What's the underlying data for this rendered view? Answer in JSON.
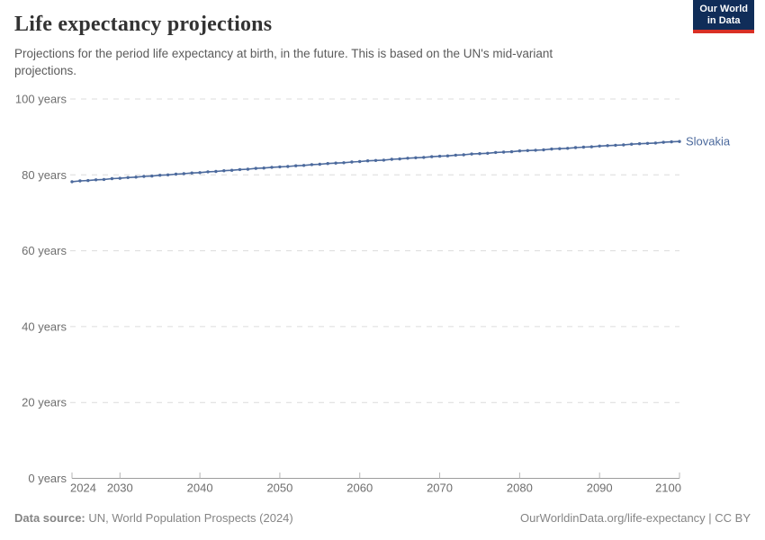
{
  "header": {
    "title": "Life expectancy projections",
    "subtitle": "Projections for the period life expectancy at birth, in the future. This is based on the UN's mid-variant projections.",
    "logo": {
      "line1": "Our World",
      "line2": "in Data"
    }
  },
  "footer": {
    "source_label": "Data source:",
    "source_value": " UN, World Population Prospects (2024)",
    "link_text": "OurWorldinData.org/life-expectancy | CC BY"
  },
  "colors": {
    "series_blue": "#4c6a9d",
    "grid": "#dcdcdc",
    "axis_line": "#9c9c9c",
    "tick_mark": "#b5b5b5",
    "tick_text": "#6e6e6e",
    "logo_navy": "#102d59",
    "logo_red": "#d93025"
  },
  "chart_data": {
    "type": "line",
    "title": "Life expectancy projections",
    "xlabel": "",
    "ylabel": "",
    "xlim": [
      2024,
      2100
    ],
    "ylim": [
      0,
      100
    ],
    "grid": true,
    "markers": true,
    "legend_position": "end-of-line",
    "x_ticks": [
      2024,
      2030,
      2040,
      2050,
      2060,
      2070,
      2080,
      2090,
      2100
    ],
    "y_ticks": [
      0,
      20,
      40,
      60,
      80,
      100
    ],
    "y_tick_suffix": " years",
    "series": [
      {
        "name": "Slovakia",
        "color": "#4c6a9d",
        "x": [
          2024,
          2025,
          2026,
          2027,
          2028,
          2029,
          2030,
          2031,
          2032,
          2033,
          2034,
          2035,
          2036,
          2037,
          2038,
          2039,
          2040,
          2041,
          2042,
          2043,
          2044,
          2045,
          2046,
          2047,
          2048,
          2049,
          2050,
          2051,
          2052,
          2053,
          2054,
          2055,
          2056,
          2057,
          2058,
          2059,
          2060,
          2061,
          2062,
          2063,
          2064,
          2065,
          2066,
          2067,
          2068,
          2069,
          2070,
          2071,
          2072,
          2073,
          2074,
          2075,
          2076,
          2077,
          2078,
          2079,
          2080,
          2081,
          2082,
          2083,
          2084,
          2085,
          2086,
          2087,
          2088,
          2089,
          2090,
          2091,
          2092,
          2093,
          2094,
          2095,
          2096,
          2097,
          2098,
          2099,
          2100
        ],
        "values": [
          78.2,
          78.4,
          78.5,
          78.7,
          78.8,
          79.0,
          79.1,
          79.3,
          79.4,
          79.6,
          79.7,
          79.9,
          80.0,
          80.2,
          80.3,
          80.5,
          80.6,
          80.8,
          80.9,
          81.1,
          81.2,
          81.4,
          81.5,
          81.7,
          81.8,
          82.0,
          82.1,
          82.2,
          82.4,
          82.5,
          82.7,
          82.8,
          83.0,
          83.1,
          83.2,
          83.4,
          83.5,
          83.7,
          83.8,
          83.9,
          84.1,
          84.2,
          84.4,
          84.5,
          84.6,
          84.8,
          84.9,
          85.0,
          85.2,
          85.3,
          85.5,
          85.6,
          85.7,
          85.9,
          86.0,
          86.1,
          86.3,
          86.4,
          86.5,
          86.6,
          86.8,
          86.9,
          87.0,
          87.2,
          87.3,
          87.4,
          87.6,
          87.7,
          87.8,
          87.9,
          88.1,
          88.2,
          88.3,
          88.4,
          88.6,
          88.7,
          88.8
        ]
      }
    ]
  }
}
